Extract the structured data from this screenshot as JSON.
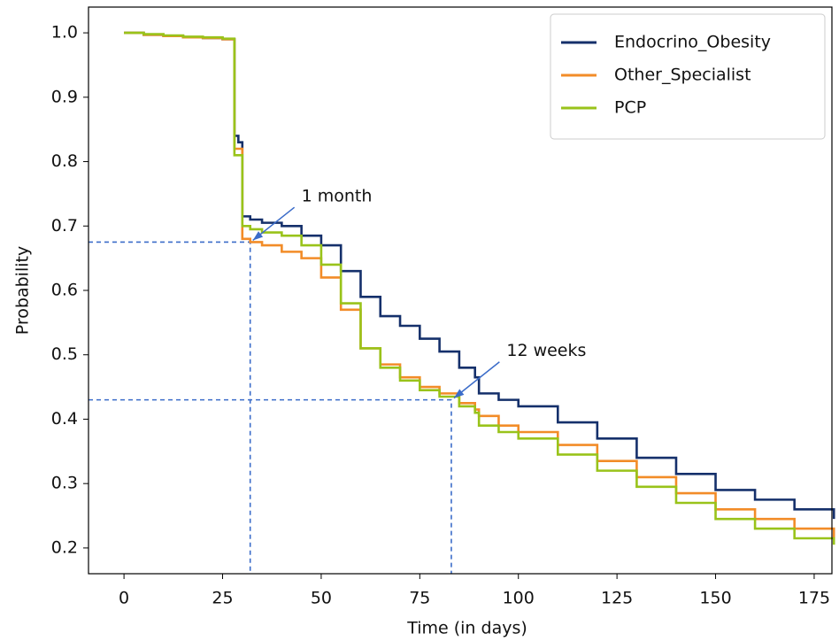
{
  "chart_data": {
    "type": "line",
    "step": "post",
    "xlabel": "Time (in days)",
    "ylabel": "Probability",
    "x": [
      0,
      5,
      10,
      15,
      20,
      25,
      27.5,
      28,
      29,
      30,
      32,
      35,
      40,
      45,
      50,
      55,
      60,
      65,
      70,
      75,
      80,
      85,
      89,
      90,
      95,
      100,
      110,
      120,
      130,
      140,
      150,
      160,
      170,
      180
    ],
    "series": [
      {
        "name": "Endocrino_Obesity",
        "color": "#15306b",
        "values": [
          1.0,
          0.997,
          0.995,
          0.993,
          0.992,
          0.99,
          0.99,
          0.84,
          0.83,
          0.715,
          0.71,
          0.705,
          0.7,
          0.685,
          0.67,
          0.63,
          0.59,
          0.56,
          0.545,
          0.525,
          0.505,
          0.48,
          0.465,
          0.44,
          0.43,
          0.42,
          0.395,
          0.37,
          0.34,
          0.315,
          0.29,
          0.275,
          0.26,
          0.245
        ]
      },
      {
        "name": "Other_Specialist",
        "color": "#f28c28",
        "values": [
          1.0,
          0.997,
          0.995,
          0.993,
          0.992,
          0.99,
          0.99,
          0.82,
          0.82,
          0.68,
          0.675,
          0.67,
          0.66,
          0.65,
          0.62,
          0.57,
          0.51,
          0.485,
          0.465,
          0.45,
          0.44,
          0.425,
          0.415,
          0.405,
          0.39,
          0.38,
          0.36,
          0.335,
          0.31,
          0.285,
          0.26,
          0.245,
          0.23,
          0.215
        ]
      },
      {
        "name": "PCP",
        "color": "#99c31a",
        "values": [
          1.0,
          0.998,
          0.996,
          0.994,
          0.993,
          0.991,
          0.991,
          0.81,
          0.81,
          0.7,
          0.695,
          0.69,
          0.685,
          0.67,
          0.64,
          0.58,
          0.51,
          0.48,
          0.46,
          0.445,
          0.435,
          0.42,
          0.41,
          0.39,
          0.38,
          0.37,
          0.345,
          0.32,
          0.295,
          0.27,
          0.245,
          0.23,
          0.215,
          0.205
        ]
      }
    ],
    "xlim": [
      -9,
      179.5
    ],
    "ylim": [
      0.16,
      1.04
    ],
    "xticks": [
      0,
      25,
      50,
      75,
      100,
      125,
      150,
      175
    ],
    "yticks": [
      0.2,
      0.3,
      0.4,
      0.5,
      0.6,
      0.7,
      0.8,
      0.9,
      {
        "value": 1.0,
        "label": "1.0"
      }
    ],
    "legend": "upper right",
    "annotations": [
      {
        "text": "1 month",
        "x": 32,
        "y": 0.675,
        "text_x": 45,
        "text_y": 0.74
      },
      {
        "text": "12 weeks",
        "x": 83,
        "y": 0.43,
        "text_x": 97,
        "text_y": 0.5
      }
    ]
  }
}
